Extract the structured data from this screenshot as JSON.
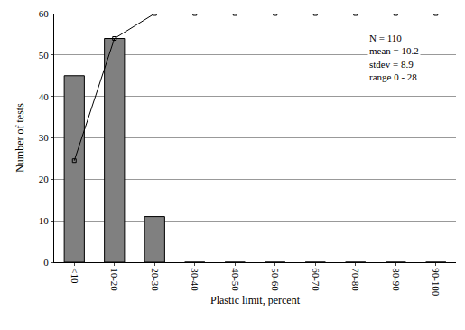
{
  "chart_data": {
    "type": "bar",
    "x_label": "Plastic limit, percent",
    "y_label": "Number of tests",
    "categories": [
      "<10",
      "10-20",
      "20-30",
      "30-40",
      "40-50",
      "50-60",
      "60-70",
      "70-80",
      "80-90",
      "90-100"
    ],
    "series": [
      {
        "type": "bar",
        "color": "#808080",
        "values": [
          45,
          54,
          11,
          0,
          0,
          0,
          0,
          0,
          0,
          0
        ]
      },
      {
        "type": "line",
        "color": "#000000",
        "marker": "square",
        "values": [
          24.5,
          54,
          60,
          60,
          60,
          60,
          60,
          60,
          60,
          60
        ]
      }
    ],
    "annotations": [
      "N = 110",
      "mean = 10.2",
      "stdev = 8.9",
      "range 0 - 28"
    ],
    "ylim": [
      0,
      60
    ],
    "yticks": [
      0,
      10,
      20,
      30,
      40,
      50,
      60
    ],
    "grid": true
  }
}
